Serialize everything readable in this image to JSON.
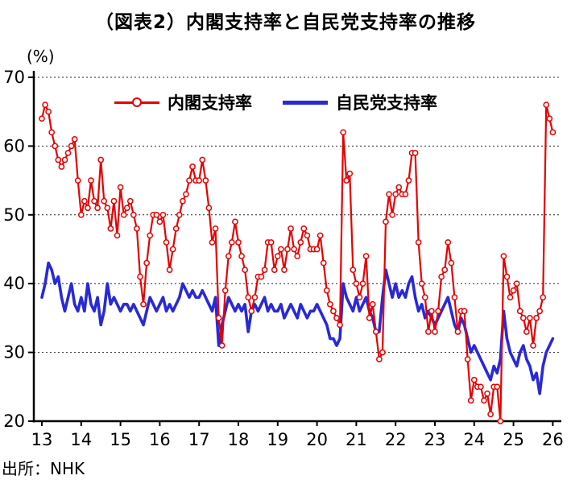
{
  "title": "（図表2）内閣支持率と自民党支持率の推移",
  "y_unit_label": "(%)",
  "source": "出所：NHK",
  "legend": [
    {
      "label": "内閣支持率",
      "color": "#e60000"
    },
    {
      "label": "自民党支持率",
      "color": "#2929d6"
    }
  ],
  "chart_data": {
    "type": "line",
    "title": "（図表2）内閣支持率と自民党支持率の推移",
    "xlabel": "",
    "ylabel": "(%)",
    "x_tick_labels": [
      "13",
      "14",
      "15",
      "16",
      "17",
      "18",
      "19",
      "20",
      "21",
      "22",
      "23",
      "24",
      "25",
      "26"
    ],
    "x_start_year": 2013,
    "points_per_year": 12,
    "ylim": [
      20,
      70
    ],
    "y_ticks": [
      20,
      30,
      40,
      50,
      60,
      70
    ],
    "grid": "horizontal-dotted",
    "legend_position": "top-inside",
    "source": "出所：NHK",
    "series": [
      {
        "name": "内閣支持率",
        "color": "#e60000",
        "marker": "open-circle",
        "values": [
          64,
          66,
          65,
          62,
          60,
          58,
          57,
          58,
          59,
          60,
          61,
          55,
          50,
          52,
          51,
          55,
          52,
          51,
          58,
          52,
          51,
          48,
          52,
          47,
          54,
          50,
          51,
          52,
          50,
          48,
          41,
          37,
          43,
          47,
          50,
          50,
          49,
          50,
          46,
          42,
          45,
          48,
          50,
          52,
          53,
          55,
          57,
          55,
          55,
          58,
          55,
          51,
          46,
          48,
          35,
          31,
          39,
          44,
          46,
          49,
          46,
          44,
          42,
          38,
          36,
          38,
          41,
          41,
          42,
          46,
          46,
          42,
          44,
          45,
          42,
          45,
          48,
          45,
          44,
          46,
          48,
          47,
          45,
          45,
          45,
          47,
          43,
          39,
          37,
          36,
          35,
          34,
          62,
          55,
          56,
          42,
          40,
          38,
          40,
          44,
          35,
          37,
          33,
          29,
          30,
          49,
          53,
          50,
          53,
          54,
          53,
          53,
          55,
          59,
          59,
          46,
          40,
          38,
          33,
          36,
          33,
          36,
          41,
          42,
          46,
          43,
          38,
          33,
          36,
          36,
          29,
          23,
          26,
          25,
          25,
          23,
          24,
          21,
          25,
          25,
          20,
          44,
          41,
          38,
          39,
          40,
          36,
          35,
          33,
          35,
          31,
          35,
          36,
          38,
          66,
          64,
          62
        ]
      },
      {
        "name": "自民党支持率",
        "color": "#2929d6",
        "marker": "none",
        "values": [
          38,
          40,
          43,
          42,
          40,
          41,
          38,
          36,
          38,
          40,
          37,
          36,
          38,
          36,
          40,
          37,
          36,
          38,
          34,
          36,
          40,
          37,
          38,
          37,
          36,
          37,
          37,
          36,
          37,
          36,
          35,
          34,
          36,
          38,
          37,
          36,
          37,
          38,
          36,
          37,
          36,
          37,
          38,
          40,
          39,
          38,
          39,
          38,
          38,
          39,
          38,
          37,
          36,
          38,
          31,
          34,
          36,
          38,
          37,
          36,
          37,
          36,
          37,
          33,
          36,
          37,
          36,
          37,
          38,
          36,
          37,
          36,
          36,
          37,
          35,
          36,
          37,
          36,
          35,
          37,
          36,
          35,
          36,
          36,
          37,
          36,
          35,
          34,
          32,
          32,
          31,
          32,
          40,
          38,
          37,
          36,
          38,
          36,
          37,
          38,
          36,
          35,
          33,
          33,
          38,
          42,
          40,
          38,
          40,
          38,
          39,
          38,
          40,
          41,
          38,
          36,
          37,
          35,
          36,
          35,
          34,
          35,
          36,
          37,
          38,
          36,
          34,
          33,
          35,
          34,
          32,
          30,
          31,
          30,
          29,
          28,
          27,
          26,
          28,
          27,
          29,
          36,
          32,
          30,
          29,
          28,
          30,
          31,
          29,
          28,
          26,
          27,
          24,
          28,
          30,
          31,
          32
        ]
      }
    ]
  }
}
